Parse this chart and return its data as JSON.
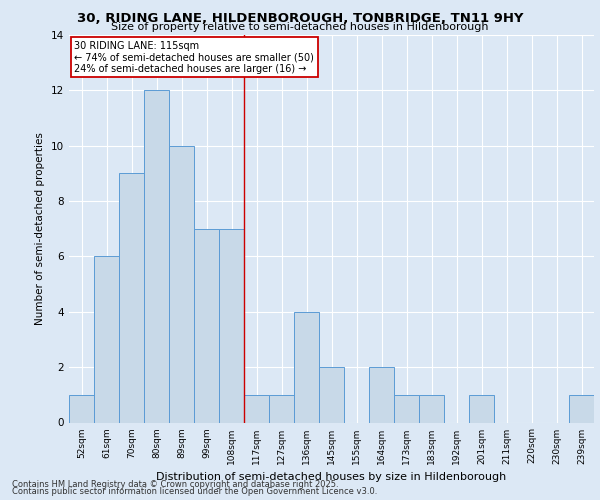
{
  "title": "30, RIDING LANE, HILDENBOROUGH, TONBRIDGE, TN11 9HY",
  "subtitle": "Size of property relative to semi-detached houses in Hildenborough",
  "xlabel": "Distribution of semi-detached houses by size in Hildenborough",
  "ylabel": "Number of semi-detached properties",
  "categories": [
    "52sqm",
    "61sqm",
    "70sqm",
    "80sqm",
    "89sqm",
    "99sqm",
    "108sqm",
    "117sqm",
    "127sqm",
    "136sqm",
    "145sqm",
    "155sqm",
    "164sqm",
    "173sqm",
    "183sqm",
    "192sqm",
    "201sqm",
    "211sqm",
    "220sqm",
    "230sqm",
    "239sqm"
  ],
  "values": [
    1,
    6,
    9,
    12,
    10,
    7,
    7,
    1,
    1,
    4,
    2,
    0,
    2,
    1,
    1,
    0,
    1,
    0,
    0,
    0,
    1
  ],
  "bar_color": "#c8d9e8",
  "bar_edge_color": "#5b9bd5",
  "property_line_bin": 7,
  "annotation_title": "30 RIDING LANE: 115sqm",
  "annotation_line1": "← 74% of semi-detached houses are smaller (50)",
  "annotation_line2": "24% of semi-detached houses are larger (16) →",
  "ylim": [
    0,
    14
  ],
  "yticks": [
    0,
    2,
    4,
    6,
    8,
    10,
    12,
    14
  ],
  "background_color": "#dce8f5",
  "footer1": "Contains HM Land Registry data © Crown copyright and database right 2025.",
  "footer2": "Contains public sector information licensed under the Open Government Licence v3.0."
}
